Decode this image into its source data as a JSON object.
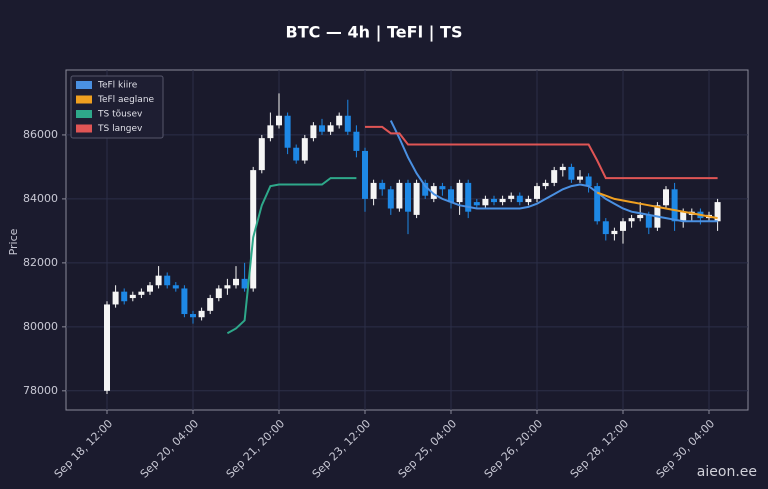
{
  "chart_data": {
    "type": "candlestick",
    "title": "BTC — 4h  |  TeFl  |  TS",
    "y_label": "Price",
    "watermark": "aieon.ee",
    "grid": true,
    "legend_position": "upper left",
    "up_color": "#f5f5f5",
    "down_color": "#1e88e5",
    "ylim": [
      77400,
      88030
    ],
    "yticks": [
      78000,
      80000,
      82000,
      84000,
      86000
    ],
    "categories": [
      "Sep 18, 12:00",
      null,
      null,
      null,
      null,
      null,
      null,
      null,
      null,
      null,
      "Sep 20, 04:00",
      null,
      null,
      null,
      null,
      null,
      null,
      null,
      null,
      null,
      "Sep 21, 20:00",
      null,
      null,
      null,
      null,
      null,
      null,
      null,
      null,
      null,
      "Sep 23, 12:00",
      null,
      null,
      null,
      null,
      null,
      null,
      null,
      null,
      null,
      "Sep 25, 04:00",
      null,
      null,
      null,
      null,
      null,
      null,
      null,
      null,
      null,
      "Sep 26, 20:00",
      null,
      null,
      null,
      null,
      null,
      null,
      null,
      null,
      null,
      "Sep 28, 12:00",
      null,
      null,
      null,
      null,
      null,
      null,
      null,
      null,
      null,
      "Sep 30, 04:00",
      null
    ],
    "open": [
      78000,
      80700,
      81100,
      80900,
      81000,
      81100,
      81300,
      81600,
      81300,
      81200,
      80400,
      80300,
      80500,
      80900,
      81200,
      81300,
      81500,
      81200,
      84900,
      85900,
      86300,
      86600,
      85600,
      85200,
      85900,
      86300,
      86100,
      86300,
      86600,
      86100,
      85500,
      84000,
      84500,
      84300,
      83700,
      84500,
      83500,
      84500,
      84000,
      84400,
      84300,
      83900,
      84500,
      83900,
      83800,
      84000,
      83900,
      84000,
      84100,
      83900,
      84000,
      84400,
      84500,
      84900,
      85000,
      84600,
      84700,
      84400,
      83300,
      82900,
      83000,
      83300,
      83400,
      83500,
      83100,
      83800,
      84300,
      83300,
      83500,
      83600,
      83400,
      83300
    ],
    "high": [
      80800,
      81300,
      81200,
      81100,
      81200,
      81400,
      81900,
      81700,
      81400,
      81300,
      80500,
      80600,
      81000,
      81300,
      81500,
      81900,
      82000,
      85000,
      86000,
      86700,
      87300,
      86700,
      85700,
      86000,
      86400,
      86500,
      86400,
      86700,
      87100,
      86300,
      85600,
      84600,
      84600,
      84400,
      84600,
      84600,
      84600,
      84600,
      84500,
      84500,
      84400,
      84600,
      84600,
      84000,
      84100,
      84100,
      84100,
      84200,
      84200,
      84100,
      84500,
      84600,
      85000,
      85100,
      85100,
      84900,
      84800,
      84500,
      83400,
      83100,
      83400,
      83500,
      83900,
      83600,
      83900,
      84400,
      84500,
      83700,
      83700,
      83700,
      83600,
      84000
    ],
    "low": [
      77900,
      80600,
      80700,
      80800,
      80900,
      81000,
      81200,
      81200,
      81100,
      80300,
      80100,
      80200,
      80400,
      80800,
      81000,
      81200,
      81100,
      81100,
      84800,
      85800,
      86200,
      85400,
      85100,
      85100,
      85800,
      86000,
      86000,
      86200,
      86000,
      85300,
      83600,
      83800,
      84100,
      83500,
      83600,
      82900,
      83400,
      84000,
      83900,
      84100,
      83700,
      83500,
      83400,
      83700,
      83700,
      83800,
      83800,
      83900,
      83800,
      83800,
      83900,
      84300,
      84400,
      84700,
      84500,
      84500,
      84200,
      83200,
      82700,
      82700,
      82600,
      83100,
      83300,
      82900,
      83000,
      83700,
      83000,
      83100,
      83300,
      83200,
      83300,
      83000
    ],
    "close": [
      80700,
      81100,
      80800,
      81000,
      81100,
      81300,
      81600,
      81300,
      81200,
      80400,
      80300,
      80500,
      80900,
      81200,
      81300,
      81500,
      81200,
      84900,
      85900,
      86300,
      86600,
      85600,
      85200,
      85900,
      86300,
      86100,
      86300,
      86600,
      86100,
      85500,
      84000,
      84500,
      84300,
      83700,
      84500,
      83600,
      84500,
      84100,
      84400,
      84300,
      83900,
      84500,
      83600,
      83800,
      84000,
      83900,
      84000,
      84100,
      83900,
      84000,
      84400,
      84500,
      84900,
      85000,
      84600,
      84700,
      84400,
      83300,
      82900,
      83000,
      83300,
      83400,
      83500,
      83100,
      83800,
      84300,
      83300,
      83600,
      83600,
      83400,
      83500,
      83900
    ],
    "series": [
      {
        "name": "TeFl kiire",
        "color": "#4a90e2",
        "values": [
          null,
          null,
          null,
          null,
          null,
          null,
          null,
          null,
          null,
          null,
          null,
          null,
          null,
          null,
          null,
          null,
          null,
          null,
          null,
          null,
          null,
          null,
          null,
          null,
          null,
          null,
          null,
          null,
          null,
          null,
          null,
          null,
          null,
          86450,
          85900,
          85300,
          84800,
          84400,
          84150,
          84000,
          83900,
          83800,
          83750,
          83700,
          83700,
          83700,
          83700,
          83700,
          83700,
          83750,
          83850,
          84000,
          84150,
          84300,
          84400,
          84450,
          84400,
          84200,
          84000,
          83850,
          83700,
          83600,
          83550,
          83500,
          83450,
          83400,
          83350,
          83300,
          83300,
          83300,
          83300,
          83300
        ]
      },
      {
        "name": "TeFl aeglane",
        "color": "#f0a020",
        "values": [
          null,
          null,
          null,
          null,
          null,
          null,
          null,
          null,
          null,
          null,
          null,
          null,
          null,
          null,
          null,
          null,
          null,
          null,
          null,
          null,
          null,
          null,
          null,
          null,
          null,
          null,
          null,
          null,
          null,
          null,
          null,
          null,
          null,
          null,
          null,
          null,
          null,
          null,
          null,
          null,
          null,
          null,
          null,
          null,
          null,
          null,
          null,
          null,
          null,
          null,
          null,
          null,
          null,
          null,
          null,
          null,
          null,
          84200,
          84100,
          84000,
          83950,
          83900,
          83850,
          83800,
          83750,
          83700,
          83650,
          83600,
          83550,
          83500,
          83450,
          83400
        ]
      },
      {
        "name": "TS tõusev",
        "color": "#2ea88a",
        "values": [
          null,
          null,
          null,
          null,
          null,
          null,
          null,
          null,
          null,
          null,
          null,
          null,
          null,
          null,
          79800,
          79950,
          80200,
          82800,
          83800,
          84400,
          84450,
          84450,
          84450,
          84450,
          84450,
          84450,
          84650,
          84650,
          84650,
          84650,
          null,
          null,
          null,
          null,
          null,
          null,
          null,
          null,
          null,
          null,
          null,
          null,
          null,
          null,
          null,
          null,
          null,
          null,
          null,
          null,
          null,
          null,
          null,
          null,
          null,
          null,
          null,
          null,
          null,
          null,
          null,
          null,
          null,
          null,
          null,
          null,
          null,
          null,
          null,
          null,
          null,
          null
        ]
      },
      {
        "name": "TS langev",
        "color": "#e05555",
        "values": [
          null,
          null,
          null,
          null,
          null,
          null,
          null,
          null,
          null,
          null,
          null,
          null,
          null,
          null,
          null,
          null,
          null,
          null,
          null,
          null,
          null,
          null,
          null,
          null,
          null,
          null,
          null,
          null,
          null,
          null,
          86250,
          86250,
          86250,
          86050,
          86050,
          85700,
          85700,
          85700,
          85700,
          85700,
          85700,
          85700,
          85700,
          85700,
          85700,
          85700,
          85700,
          85700,
          85700,
          85700,
          85700,
          85700,
          85700,
          85700,
          85700,
          85700,
          85700,
          85200,
          84650,
          84650,
          84650,
          84650,
          84650,
          84650,
          84650,
          84650,
          84650,
          84650,
          84650,
          84650,
          84650,
          84650
        ]
      }
    ]
  }
}
